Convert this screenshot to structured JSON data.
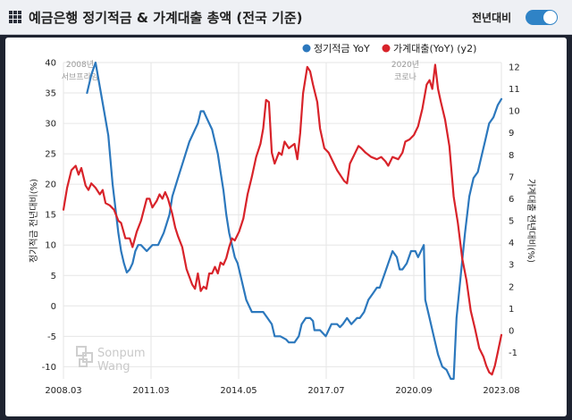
{
  "header": {
    "title": "예금은행 정기적금 & 가계대출 총액 (전국 기준)",
    "toggle_label": "전년대비",
    "toggle_on": true
  },
  "watermark": {
    "line1": "Sonpum",
    "line2": "Wang"
  },
  "colors": {
    "blue": "#2c78bd",
    "red": "#d8232a",
    "toggle": "#2f83c6"
  },
  "chart_data": {
    "type": "line",
    "legend": {
      "position": "top-right"
    },
    "x_ticks": [
      "2008.03",
      "2011.03",
      "2014.05",
      "2017.07",
      "2020.09",
      "2023.08"
    ],
    "x_range": [
      2008.17,
      2023.58
    ],
    "y_left": {
      "label": "정기적금 전년대비(%)",
      "min": -12,
      "max": 40,
      "ticks": [
        -10,
        -5,
        0,
        5,
        10,
        15,
        20,
        25,
        30,
        35,
        40
      ]
    },
    "y_right": {
      "label": "가계대출 전년대비(%)",
      "min": -2.2,
      "max": 12.2,
      "ticks": [
        -1,
        0,
        1,
        2,
        3,
        4,
        5,
        6,
        7,
        8,
        9,
        10,
        11,
        12
      ]
    },
    "grid": true,
    "annotations": [
      {
        "x": 2008.75,
        "lines": [
          "2008년",
          "서브프라임"
        ]
      },
      {
        "x": 2020.2,
        "lines": [
          "2020년",
          "코로나"
        ]
      }
    ],
    "series": [
      {
        "name": "정기적금 YoY",
        "axis": "left",
        "points": [
          [
            2009.0,
            35
          ],
          [
            2009.15,
            38
          ],
          [
            2009.3,
            40
          ],
          [
            2009.45,
            36
          ],
          [
            2009.6,
            32
          ],
          [
            2009.75,
            28
          ],
          [
            2009.9,
            20
          ],
          [
            2010.0,
            16
          ],
          [
            2010.1,
            12
          ],
          [
            2010.2,
            9
          ],
          [
            2010.3,
            7
          ],
          [
            2010.4,
            5.5
          ],
          [
            2010.5,
            6
          ],
          [
            2010.6,
            7
          ],
          [
            2010.7,
            9
          ],
          [
            2010.8,
            10
          ],
          [
            2010.9,
            10
          ],
          [
            2011.0,
            9.5
          ],
          [
            2011.1,
            9
          ],
          [
            2011.2,
            9.5
          ],
          [
            2011.3,
            10
          ],
          [
            2011.5,
            10
          ],
          [
            2011.7,
            12
          ],
          [
            2011.9,
            15
          ],
          [
            2012.0,
            18
          ],
          [
            2012.2,
            21
          ],
          [
            2012.4,
            24
          ],
          [
            2012.6,
            27
          ],
          [
            2012.8,
            29
          ],
          [
            2012.9,
            30
          ],
          [
            2013.0,
            32
          ],
          [
            2013.1,
            32
          ],
          [
            2013.2,
            31
          ],
          [
            2013.3,
            30
          ],
          [
            2013.4,
            29
          ],
          [
            2013.5,
            27
          ],
          [
            2013.6,
            25
          ],
          [
            2013.7,
            22
          ],
          [
            2013.8,
            19
          ],
          [
            2013.9,
            15
          ],
          [
            2014.0,
            12
          ],
          [
            2014.1,
            10
          ],
          [
            2014.2,
            8
          ],
          [
            2014.3,
            7
          ],
          [
            2014.4,
            5
          ],
          [
            2014.5,
            3
          ],
          [
            2014.6,
            1
          ],
          [
            2014.7,
            0
          ],
          [
            2014.8,
            -1
          ],
          [
            2015.0,
            -1
          ],
          [
            2015.2,
            -1
          ],
          [
            2015.35,
            -2
          ],
          [
            2015.5,
            -3
          ],
          [
            2015.6,
            -5
          ],
          [
            2015.8,
            -5
          ],
          [
            2016.0,
            -5.5
          ],
          [
            2016.1,
            -6
          ],
          [
            2016.3,
            -6
          ],
          [
            2016.45,
            -5
          ],
          [
            2016.55,
            -3
          ],
          [
            2016.7,
            -2
          ],
          [
            2016.85,
            -2
          ],
          [
            2016.95,
            -2.5
          ],
          [
            2017.0,
            -4
          ],
          [
            2017.2,
            -4
          ],
          [
            2017.4,
            -5
          ],
          [
            2017.5,
            -4
          ],
          [
            2017.6,
            -3
          ],
          [
            2017.8,
            -3
          ],
          [
            2017.9,
            -3.5
          ],
          [
            2018.0,
            -3
          ],
          [
            2018.15,
            -2
          ],
          [
            2018.3,
            -3
          ],
          [
            2018.5,
            -2
          ],
          [
            2018.6,
            -2
          ],
          [
            2018.75,
            -1
          ],
          [
            2018.9,
            1
          ],
          [
            2019.05,
            2
          ],
          [
            2019.2,
            3
          ],
          [
            2019.3,
            3
          ],
          [
            2019.45,
            5
          ],
          [
            2019.6,
            7
          ],
          [
            2019.75,
            9
          ],
          [
            2019.9,
            8
          ],
          [
            2020.0,
            6
          ],
          [
            2020.1,
            6
          ],
          [
            2020.25,
            7
          ],
          [
            2020.4,
            9
          ],
          [
            2020.55,
            9
          ],
          [
            2020.65,
            8
          ],
          [
            2020.75,
            9
          ],
          [
            2020.85,
            10
          ],
          [
            2020.9,
            1
          ],
          [
            2021.05,
            -2
          ],
          [
            2021.2,
            -5
          ],
          [
            2021.35,
            -8
          ],
          [
            2021.5,
            -10
          ],
          [
            2021.65,
            -10.5
          ],
          [
            2021.8,
            -12
          ],
          [
            2021.9,
            -12
          ],
          [
            2022.0,
            -2
          ],
          [
            2022.15,
            5
          ],
          [
            2022.3,
            12
          ],
          [
            2022.45,
            18
          ],
          [
            2022.6,
            21
          ],
          [
            2022.75,
            22
          ],
          [
            2022.85,
            24
          ],
          [
            2023.0,
            27
          ],
          [
            2023.15,
            30
          ],
          [
            2023.3,
            31
          ],
          [
            2023.45,
            33
          ],
          [
            2023.58,
            34
          ]
        ]
      },
      {
        "name": "가계대출(YoY) (y2)",
        "axis": "right",
        "points": [
          [
            2008.17,
            5.5
          ],
          [
            2008.3,
            6.5
          ],
          [
            2008.45,
            7.3
          ],
          [
            2008.6,
            7.5
          ],
          [
            2008.7,
            7.1
          ],
          [
            2008.8,
            7.4
          ],
          [
            2008.95,
            6.6
          ],
          [
            2009.05,
            6.4
          ],
          [
            2009.15,
            6.7
          ],
          [
            2009.3,
            6.5
          ],
          [
            2009.45,
            6.2
          ],
          [
            2009.55,
            6.4
          ],
          [
            2009.65,
            5.8
          ],
          [
            2009.8,
            5.7
          ],
          [
            2009.95,
            5.5
          ],
          [
            2010.1,
            5.0
          ],
          [
            2010.2,
            4.9
          ],
          [
            2010.35,
            4.2
          ],
          [
            2010.5,
            4.2
          ],
          [
            2010.6,
            3.8
          ],
          [
            2010.75,
            4.5
          ],
          [
            2010.9,
            5.0
          ],
          [
            2011.0,
            5.5
          ],
          [
            2011.1,
            6.0
          ],
          [
            2011.2,
            6.0
          ],
          [
            2011.3,
            5.6
          ],
          [
            2011.45,
            5.9
          ],
          [
            2011.55,
            6.2
          ],
          [
            2011.65,
            6.0
          ],
          [
            2011.75,
            6.3
          ],
          [
            2011.85,
            6.0
          ],
          [
            2012.0,
            5.3
          ],
          [
            2012.1,
            4.7
          ],
          [
            2012.2,
            4.3
          ],
          [
            2012.35,
            3.8
          ],
          [
            2012.5,
            2.8
          ],
          [
            2012.7,
            2.1
          ],
          [
            2012.8,
            1.9
          ],
          [
            2012.9,
            2.6
          ],
          [
            2013.0,
            1.8
          ],
          [
            2013.1,
            2.0
          ],
          [
            2013.2,
            1.9
          ],
          [
            2013.3,
            2.6
          ],
          [
            2013.4,
            2.6
          ],
          [
            2013.5,
            2.9
          ],
          [
            2013.6,
            2.6
          ],
          [
            2013.7,
            3.1
          ],
          [
            2013.8,
            3.0
          ],
          [
            2013.9,
            3.3
          ],
          [
            2014.0,
            3.8
          ],
          [
            2014.1,
            4.2
          ],
          [
            2014.2,
            4.1
          ],
          [
            2014.35,
            4.5
          ],
          [
            2014.5,
            5.1
          ],
          [
            2014.65,
            6.2
          ],
          [
            2014.8,
            7.0
          ],
          [
            2014.95,
            7.9
          ],
          [
            2015.1,
            8.5
          ],
          [
            2015.2,
            9.2
          ],
          [
            2015.3,
            10.5
          ],
          [
            2015.4,
            10.4
          ],
          [
            2015.5,
            8.1
          ],
          [
            2015.6,
            7.6
          ],
          [
            2015.75,
            8.1
          ],
          [
            2015.85,
            8.0
          ],
          [
            2015.95,
            8.6
          ],
          [
            2016.1,
            8.3
          ],
          [
            2016.2,
            8.4
          ],
          [
            2016.3,
            8.5
          ],
          [
            2016.4,
            7.8
          ],
          [
            2016.5,
            9.0
          ],
          [
            2016.6,
            10.8
          ],
          [
            2016.75,
            12.0
          ],
          [
            2016.85,
            11.8
          ],
          [
            2016.95,
            11.2
          ],
          [
            2017.1,
            10.4
          ],
          [
            2017.2,
            9.2
          ],
          [
            2017.35,
            8.3
          ],
          [
            2017.5,
            8.1
          ],
          [
            2017.65,
            7.7
          ],
          [
            2017.8,
            7.3
          ],
          [
            2017.95,
            7.0
          ],
          [
            2018.05,
            6.8
          ],
          [
            2018.15,
            6.7
          ],
          [
            2018.25,
            7.6
          ],
          [
            2018.4,
            8.0
          ],
          [
            2018.55,
            8.4
          ],
          [
            2018.65,
            8.3
          ],
          [
            2018.8,
            8.1
          ],
          [
            2019.0,
            7.9
          ],
          [
            2019.2,
            7.8
          ],
          [
            2019.35,
            7.9
          ],
          [
            2019.5,
            7.7
          ],
          [
            2019.6,
            7.5
          ],
          [
            2019.75,
            7.9
          ],
          [
            2019.95,
            7.8
          ],
          [
            2020.1,
            8.1
          ],
          [
            2020.2,
            8.6
          ],
          [
            2020.35,
            8.7
          ],
          [
            2020.5,
            8.9
          ],
          [
            2020.65,
            9.3
          ],
          [
            2020.8,
            10.1
          ],
          [
            2020.95,
            11.2
          ],
          [
            2021.05,
            11.4
          ],
          [
            2021.15,
            11.0
          ],
          [
            2021.25,
            12.1
          ],
          [
            2021.35,
            11.0
          ],
          [
            2021.45,
            10.4
          ],
          [
            2021.6,
            9.6
          ],
          [
            2021.75,
            8.4
          ],
          [
            2021.9,
            6.1
          ],
          [
            2022.05,
            4.9
          ],
          [
            2022.2,
            3.3
          ],
          [
            2022.35,
            2.3
          ],
          [
            2022.5,
            0.9
          ],
          [
            2022.65,
            0.1
          ],
          [
            2022.8,
            -0.8
          ],
          [
            2022.95,
            -1.2
          ],
          [
            2023.05,
            -1.6
          ],
          [
            2023.15,
            -1.9
          ],
          [
            2023.25,
            -2.0
          ],
          [
            2023.35,
            -1.6
          ],
          [
            2023.45,
            -1.0
          ],
          [
            2023.58,
            -0.2
          ]
        ]
      }
    ]
  }
}
